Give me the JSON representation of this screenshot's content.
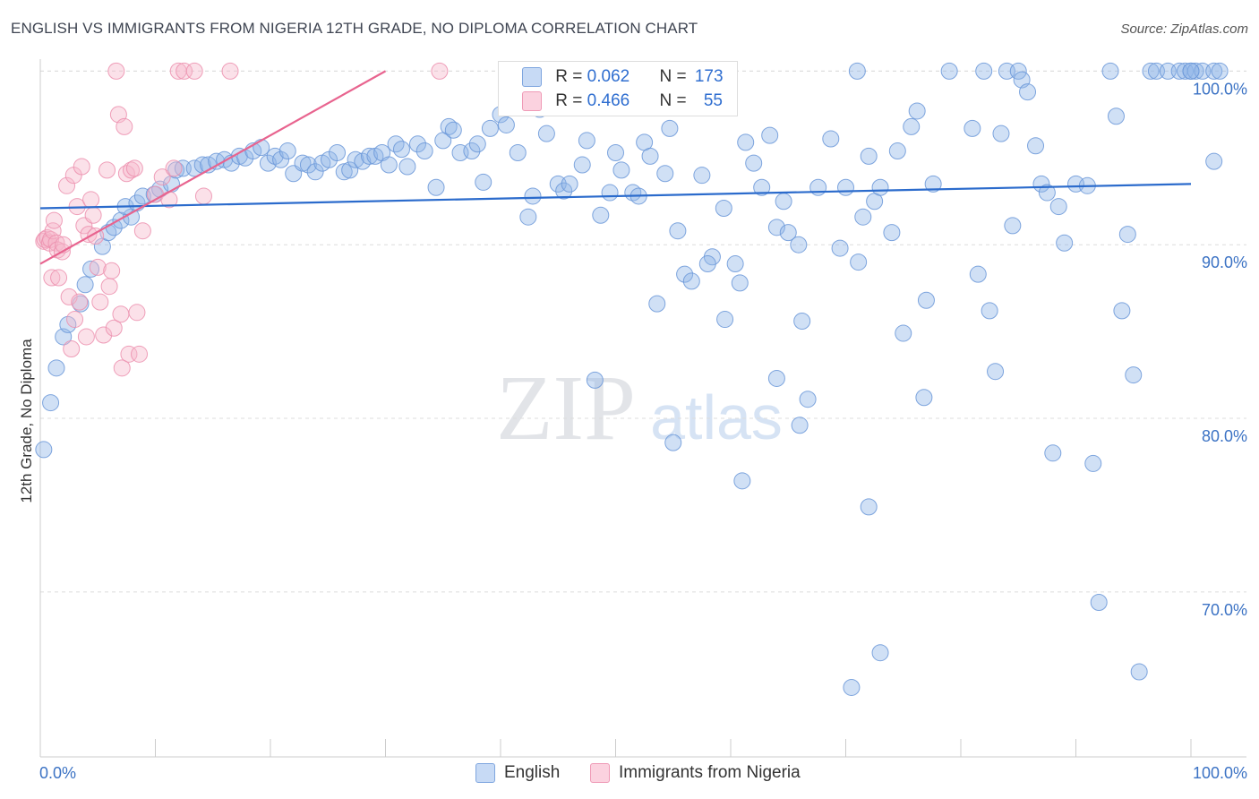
{
  "chart_data": {
    "type": "scatter",
    "title": "ENGLISH VS IMMIGRANTS FROM NIGERIA 12TH GRADE, NO DIPLOMA CORRELATION CHART",
    "source": "Source: ZipAtlas.com",
    "watermark": {
      "zip": "ZIP",
      "atlas": "atlas"
    },
    "xlabel": "",
    "ylabel": "12th Grade, No Diploma",
    "xlim": [
      0,
      100
    ],
    "ylim": [
      60.5,
      101
    ],
    "x_tick_labels": [
      {
        "value": 0,
        "label": "0.0%"
      },
      {
        "value": 100,
        "label": "100.0%"
      }
    ],
    "x_minor_ticks": [
      0,
      10,
      20,
      30,
      40,
      50,
      60,
      70,
      80,
      90,
      100
    ],
    "y_ticks": [
      {
        "value": 70,
        "label": "70.0%"
      },
      {
        "value": 80,
        "label": "80.0%"
      },
      {
        "value": 90,
        "label": "90.0%"
      },
      {
        "value": 100,
        "label": "100.0%"
      }
    ],
    "grid": true,
    "legend_position": "bottom-center",
    "series": [
      {
        "name": "English",
        "color": "#8fb4e8",
        "stroke": "#6a97d8",
        "r_label": "R = ",
        "r_value": "0.062",
        "n_label": "N = ",
        "n_value": "173",
        "trend": {
          "x": [
            0,
            100
          ],
          "y": [
            92.1,
            93.5
          ],
          "color": "#2b6bcc"
        },
        "points": [
          [
            0.3,
            78.2
          ],
          [
            0.9,
            80.9
          ],
          [
            1.4,
            82.9
          ],
          [
            2,
            84.7
          ],
          [
            2.4,
            85.4
          ],
          [
            3.5,
            86.6
          ],
          [
            3.9,
            87.7
          ],
          [
            4.4,
            88.6
          ],
          [
            5.4,
            89.9
          ],
          [
            5.9,
            90.7
          ],
          [
            6.4,
            91
          ],
          [
            7,
            91.4
          ],
          [
            7.9,
            91.6
          ],
          [
            7.4,
            92.2
          ],
          [
            8.4,
            92.4
          ],
          [
            8.9,
            92.8
          ],
          [
            9.9,
            92.9
          ],
          [
            10.4,
            93.2
          ],
          [
            11.4,
            93.5
          ],
          [
            11.8,
            94.3
          ],
          [
            12.4,
            94.4
          ],
          [
            13.4,
            94.4
          ],
          [
            14.1,
            94.6
          ],
          [
            14.6,
            94.6
          ],
          [
            15.3,
            94.8
          ],
          [
            16,
            94.9
          ],
          [
            16.6,
            94.7
          ],
          [
            17.3,
            95.1
          ],
          [
            17.8,
            95
          ],
          [
            18.5,
            95.4
          ],
          [
            19.2,
            95.6
          ],
          [
            19.8,
            94.7
          ],
          [
            20.4,
            95.1
          ],
          [
            20.9,
            94.9
          ],
          [
            21.5,
            95.4
          ],
          [
            22,
            94.1
          ],
          [
            22.8,
            94.7
          ],
          [
            23.3,
            94.6
          ],
          [
            23.9,
            94.2
          ],
          [
            24.5,
            94.7
          ],
          [
            25.1,
            94.9
          ],
          [
            25.8,
            95.3
          ],
          [
            26.4,
            94.2
          ],
          [
            26.9,
            94.3
          ],
          [
            27.4,
            94.9
          ],
          [
            28,
            94.8
          ],
          [
            28.6,
            95.1
          ],
          [
            29.1,
            95.1
          ],
          [
            29.7,
            95.3
          ],
          [
            30.3,
            94.6
          ],
          [
            30.9,
            95.8
          ],
          [
            31.4,
            95.5
          ],
          [
            31.9,
            94.5
          ],
          [
            32.8,
            95.8
          ],
          [
            33.4,
            95.4
          ],
          [
            34.4,
            93.3
          ],
          [
            35,
            96
          ],
          [
            35.5,
            96.8
          ],
          [
            35.9,
            96.6
          ],
          [
            36.5,
            95.3
          ],
          [
            37.5,
            95.4
          ],
          [
            38,
            95.8
          ],
          [
            38.5,
            93.6
          ],
          [
            39.1,
            96.7
          ],
          [
            40,
            97.5
          ],
          [
            40.5,
            96.9
          ],
          [
            41.5,
            95.3
          ],
          [
            42.4,
            91.6
          ],
          [
            42.8,
            92.8
          ],
          [
            43.4,
            97.8
          ],
          [
            44,
            96.4
          ],
          [
            45,
            93.5
          ],
          [
            45.5,
            93.1
          ],
          [
            46,
            93.5
          ],
          [
            47.1,
            94.6
          ],
          [
            47.5,
            96
          ],
          [
            48.2,
            82.2
          ],
          [
            48.7,
            91.7
          ],
          [
            49.5,
            93
          ],
          [
            50,
            95.3
          ],
          [
            50.5,
            94.3
          ],
          [
            51.5,
            93
          ],
          [
            52,
            92.8
          ],
          [
            52.5,
            95.9
          ],
          [
            53,
            95.1
          ],
          [
            53.6,
            86.6
          ],
          [
            54.3,
            94.1
          ],
          [
            54.7,
            96.7
          ],
          [
            55.4,
            90.8
          ],
          [
            56,
            88.3
          ],
          [
            56.6,
            87.9
          ],
          [
            57.5,
            94
          ],
          [
            58.4,
            89.3
          ],
          [
            59.4,
            92.1
          ],
          [
            60.4,
            88.9
          ],
          [
            60.8,
            87.8
          ],
          [
            61.3,
            95.9
          ],
          [
            62,
            94.7
          ],
          [
            62.7,
            93.3
          ],
          [
            63.4,
            96.3
          ],
          [
            64,
            91
          ],
          [
            64.6,
            92.5
          ],
          [
            65,
            90.7
          ],
          [
            65.9,
            90
          ],
          [
            66.2,
            85.6
          ],
          [
            66.7,
            81.1
          ],
          [
            67.6,
            93.3
          ],
          [
            68.7,
            96.1
          ],
          [
            69.5,
            89.8
          ],
          [
            70,
            93.3
          ],
          [
            71.1,
            89
          ],
          [
            71.5,
            91.6
          ],
          [
            72,
            95.1
          ],
          [
            72.5,
            92.5
          ],
          [
            73,
            93.3
          ],
          [
            74,
            90.7
          ],
          [
            74.5,
            95.4
          ],
          [
            75,
            84.9
          ],
          [
            75.7,
            96.8
          ],
          [
            76.2,
            97.7
          ],
          [
            76.8,
            81.2
          ],
          [
            77.6,
            93.5
          ],
          [
            79,
            100
          ],
          [
            81,
            96.7
          ],
          [
            81.5,
            88.3
          ],
          [
            82,
            100
          ],
          [
            82.5,
            86.2
          ],
          [
            83,
            82.7
          ],
          [
            83.5,
            96.4
          ],
          [
            84,
            100
          ],
          [
            84.5,
            91.1
          ],
          [
            85,
            100
          ],
          [
            85.3,
            99.5
          ],
          [
            85.8,
            98.8
          ],
          [
            86.5,
            95.7
          ],
          [
            87,
            93.5
          ],
          [
            87.5,
            93
          ],
          [
            88,
            78
          ],
          [
            88.5,
            92.2
          ],
          [
            89,
            90.1
          ],
          [
            90,
            93.5
          ],
          [
            91,
            93.4
          ],
          [
            91.5,
            77.4
          ],
          [
            92,
            69.4
          ],
          [
            93,
            100
          ],
          [
            93.5,
            97.4
          ],
          [
            94,
            86.2
          ],
          [
            94.5,
            90.6
          ],
          [
            95,
            82.5
          ],
          [
            95.5,
            65.4
          ],
          [
            96.5,
            100
          ],
          [
            97,
            100
          ],
          [
            98,
            100
          ],
          [
            99,
            100
          ],
          [
            99.5,
            100
          ],
          [
            100,
            100
          ],
          [
            100.4,
            100
          ],
          [
            101,
            100
          ],
          [
            102,
            100
          ],
          [
            102.5,
            100
          ],
          [
            102,
            94.8
          ],
          [
            59.5,
            85.7
          ],
          [
            61,
            76.4
          ],
          [
            55,
            78.6
          ],
          [
            64,
            82.3
          ],
          [
            66,
            79.6
          ],
          [
            58,
            88.9
          ],
          [
            70.5,
            64.5
          ],
          [
            72,
            74.9
          ],
          [
            73,
            66.5
          ],
          [
            77,
            86.8
          ],
          [
            52.6,
            97.9
          ],
          [
            71,
            100
          ],
          [
            100,
            100
          ]
        ]
      },
      {
        "name": "Immigrants from Nigeria",
        "color": "#f6b8cb",
        "stroke": "#ec8fae",
        "r_label": "R = ",
        "r_value": "0.466",
        "n_label": "N = ",
        "n_value": "55",
        "trend": {
          "x": [
            0,
            30
          ],
          "y": [
            88.9,
            100
          ],
          "color": "#e8648f"
        },
        "points": [
          [
            0.3,
            90.2
          ],
          [
            0.4,
            90.3
          ],
          [
            0.6,
            90.4
          ],
          [
            0.8,
            90.1
          ],
          [
            0.9,
            90.3
          ],
          [
            1,
            88.1
          ],
          [
            1.1,
            90.8
          ],
          [
            1.2,
            91.4
          ],
          [
            1.4,
            90.1
          ],
          [
            1.5,
            89.7
          ],
          [
            1.6,
            88.1
          ],
          [
            1.9,
            89.6
          ],
          [
            2,
            90
          ],
          [
            2.3,
            93.4
          ],
          [
            2.5,
            87
          ],
          [
            2.7,
            84
          ],
          [
            2.9,
            94
          ],
          [
            3,
            85.7
          ],
          [
            3.2,
            92.2
          ],
          [
            3.4,
            86.7
          ],
          [
            3.6,
            94.5
          ],
          [
            3.8,
            91.1
          ],
          [
            4,
            84.7
          ],
          [
            4.2,
            90.6
          ],
          [
            4.4,
            92.6
          ],
          [
            4.6,
            91.7
          ],
          [
            4.8,
            90.5
          ],
          [
            5,
            88.7
          ],
          [
            5.2,
            86.7
          ],
          [
            5.5,
            84.8
          ],
          [
            5.8,
            94.3
          ],
          [
            6,
            87.6
          ],
          [
            6.2,
            88.5
          ],
          [
            6.4,
            85.2
          ],
          [
            6.6,
            100
          ],
          [
            6.8,
            97.5
          ],
          [
            7,
            86
          ],
          [
            7.1,
            82.9
          ],
          [
            7.3,
            96.8
          ],
          [
            7.5,
            94.1
          ],
          [
            7.7,
            83.7
          ],
          [
            7.9,
            94.3
          ],
          [
            8.2,
            94.4
          ],
          [
            8.4,
            86.1
          ],
          [
            8.6,
            83.7
          ],
          [
            8.9,
            90.8
          ],
          [
            10,
            92.9
          ],
          [
            10.6,
            93.9
          ],
          [
            11.2,
            92.6
          ],
          [
            11.6,
            94.4
          ],
          [
            12,
            100
          ],
          [
            12.5,
            100
          ],
          [
            13.4,
            100
          ],
          [
            14.2,
            92.8
          ],
          [
            16.5,
            100
          ],
          [
            34.7,
            100
          ]
        ]
      }
    ]
  }
}
